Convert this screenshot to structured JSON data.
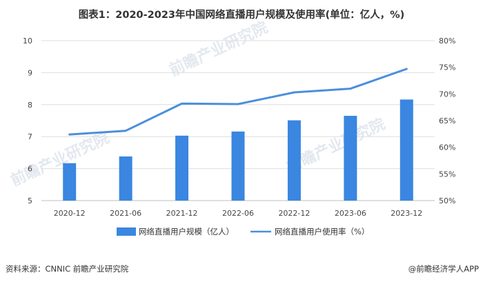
{
  "chart_data": {
    "type": "bar",
    "title": "图表1：2020-2023年中国网络直播用户规模及使用率(单位：亿人，%)",
    "categories": [
      "2020-12",
      "2021-06",
      "2021-12",
      "2022-06",
      "2022-12",
      "2023-06",
      "2023-12"
    ],
    "series": [
      {
        "name": "网络直播用户规模（亿人）",
        "type": "bar",
        "axis": "left",
        "values": [
          6.17,
          6.38,
          7.03,
          7.16,
          7.51,
          7.65,
          8.16
        ]
      },
      {
        "name": "网络直播用户使用率（%）",
        "type": "line",
        "axis": "right",
        "values": [
          62.4,
          63.1,
          68.2,
          68.1,
          70.3,
          71.0,
          74.7
        ]
      }
    ],
    "y_left": {
      "min": 5,
      "max": 10,
      "ticks": [
        "5",
        "6",
        "7",
        "8",
        "9",
        "10"
      ]
    },
    "y_right": {
      "min": 50,
      "max": 80,
      "ticks": [
        "50%",
        "55%",
        "60%",
        "65%",
        "70%",
        "75%",
        "80%"
      ]
    },
    "grid": true,
    "legend_position": "bottom",
    "colors": {
      "bar": "#3a86e0",
      "line": "#4a8fdd",
      "grid": "#dedede"
    }
  },
  "source": "资料来源：CNNIC 前瞻产业研究院",
  "brand": "@前瞻经济学人APP",
  "watermark": "前瞻产业研究院"
}
